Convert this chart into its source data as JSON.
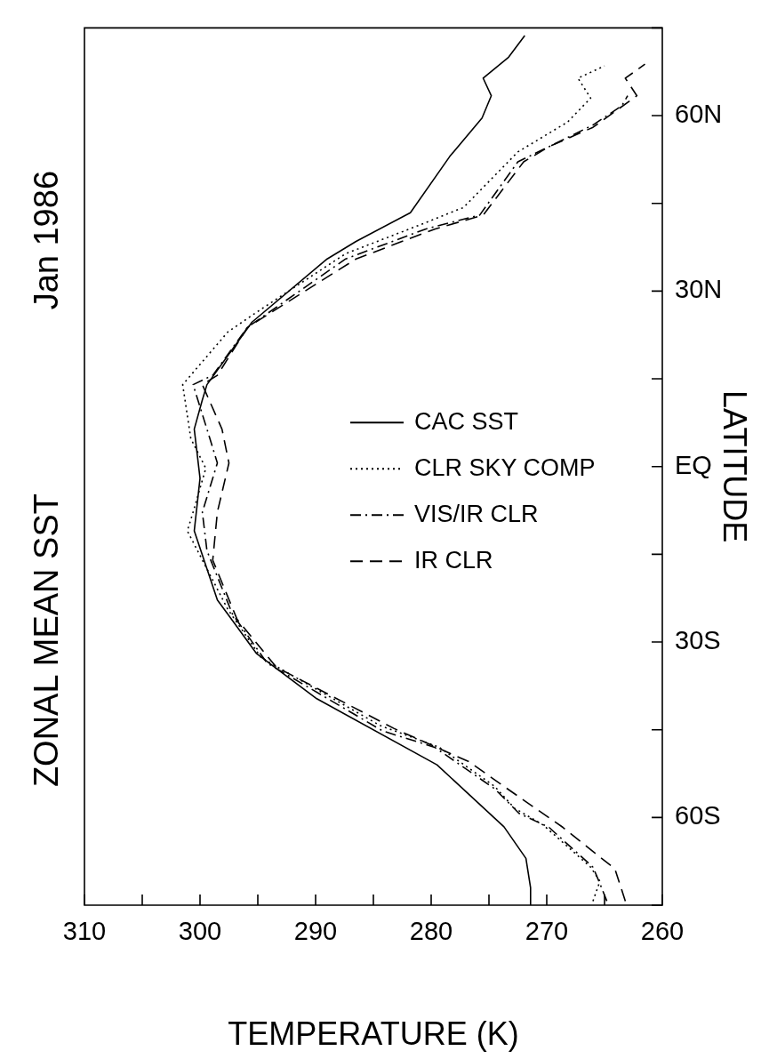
{
  "chart_data": {
    "type": "line",
    "title": "ZONAL MEAN SST",
    "subtitle": "Jan 1986",
    "xlabel": "TEMPERATURE (K)",
    "ylabel": "LATITUDE",
    "xlim": [
      310,
      260
    ],
    "xticks": [
      310,
      {
        "value": 305,
        "label": null
      },
      300,
      {
        "value": 295,
        "label": null
      },
      290,
      {
        "value": 285,
        "label": null
      },
      280,
      {
        "value": 275,
        "label": null
      },
      270,
      {
        "value": 265,
        "label": null
      },
      260
    ],
    "ylim": [
      -75,
      75
    ],
    "yticks": [
      {
        "value": -75,
        "label": null
      },
      {
        "value": -60,
        "label": "60S"
      },
      {
        "value": -45,
        "label": null
      },
      {
        "value": -30,
        "label": "30S"
      },
      {
        "value": -15,
        "label": null
      },
      {
        "value": 0,
        "label": "EQ"
      },
      {
        "value": 15,
        "label": null
      },
      {
        "value": 30,
        "label": "30N"
      },
      {
        "value": 45,
        "label": null
      },
      {
        "value": 60,
        "label": "60N"
      },
      {
        "value": 75,
        "label": null
      }
    ],
    "legend": "bottom",
    "series": [
      {
        "name": "CAC SST",
        "color": "#000000",
        "line_style": "solid",
        "values": [
          -75,
          -72,
          -67,
          -61.6,
          -51,
          -39.7,
          -32,
          -22.8,
          -11,
          -2,
          6.4,
          11.4,
          14,
          24.7,
          35.5,
          38.5,
          43.4,
          53,
          59.6,
          63.4,
          66.4,
          70,
          73.7
        ],
        "x": [
          271.4,
          271.4,
          271.8,
          273.7,
          279.5,
          289.9,
          295.1,
          298.5,
          300.5,
          300,
          300.5,
          299.8,
          299.4,
          295.5,
          289,
          286.5,
          281.8,
          278.4,
          275.6,
          274.8,
          275.5,
          273.3,
          271.9
        ]
      },
      {
        "name": "CLR SKY COMP",
        "color": "#000000",
        "line_style": "dotted",
        "values": [
          -74.3,
          -70.9,
          -68.5,
          -61.3,
          -58.4,
          -54.7,
          -48,
          -44.3,
          -32.7,
          -24.4,
          -11,
          -7.8,
          -0.3,
          4.8,
          14,
          23,
          26.4,
          36.4,
          41.3,
          44.3,
          53.8,
          58.9,
          63,
          66.4,
          68.5
        ],
        "x": [
          266,
          265.4,
          266.2,
          270.3,
          272.8,
          274.5,
          279.3,
          284.4,
          294.7,
          297.6,
          301.1,
          300.6,
          299.5,
          300.8,
          301.5,
          297.6,
          295.1,
          287.4,
          281,
          277.2,
          272.5,
          268.2,
          266.2,
          267.3,
          265
        ]
      },
      {
        "name": "VIS/IR CLR",
        "color": "#000000",
        "line_style": "dashdot",
        "values": [
          -74.3,
          -71.3,
          -68.5,
          -61.7,
          -59.3,
          -55.1,
          -48,
          -45.2,
          -33.6,
          -25.2,
          -14.4,
          -7.8,
          0.6,
          6.4,
          14,
          15.6,
          23.8,
          35.5,
          40.6,
          43,
          52.1,
          54.7,
          58.4,
          61.7,
          63.4
        ],
        "x": [
          264.8,
          265.4,
          266,
          269.8,
          272.4,
          274.5,
          279.7,
          284.2,
          294.2,
          297.2,
          299.4,
          299.8,
          298.5,
          299.4,
          300.6,
          298.9,
          295.9,
          287.4,
          280.5,
          275.8,
          272.5,
          269.8,
          266,
          263.5,
          263
        ]
      },
      {
        "name": "IR CLR",
        "color": "#000000",
        "line_style": "dashed",
        "values": [
          -74.3,
          -68.8,
          -61.7,
          -54.7,
          -50.5,
          -44.8,
          -34.3,
          -26.1,
          -16,
          -7.8,
          0.6,
          6.4,
          14,
          15.6,
          23.8,
          35.5,
          40.6,
          43,
          52.1,
          54.7,
          58,
          63.4,
          66.4,
          68.8
        ],
        "x": [
          263.2,
          264.1,
          268.6,
          273.7,
          276.7,
          283.2,
          293.4,
          296.8,
          298.9,
          298.5,
          297.5,
          298.1,
          299.8,
          298.5,
          295.9,
          286.5,
          279.7,
          275.5,
          272,
          269.8,
          266,
          262.2,
          263.2,
          261.5
        ]
      }
    ]
  }
}
